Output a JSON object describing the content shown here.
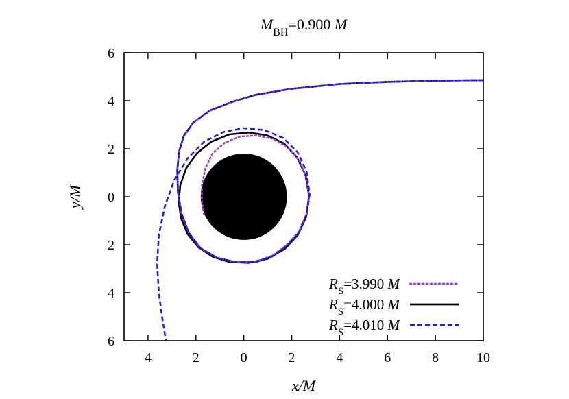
{
  "chart_data": {
    "type": "line",
    "title": {
      "symbol": "M",
      "subscript": "BH",
      "value": "=0.900 ",
      "unit": "M"
    },
    "xlabel": "x/M",
    "ylabel": "y/M",
    "xlim": [
      -5,
      10
    ],
    "ylim": [
      -6,
      6
    ],
    "x_ticks": [
      -4,
      -2,
      0,
      2,
      4,
      6,
      8,
      10
    ],
    "x_tick_labels": [
      "4",
      "2",
      "0",
      "2",
      "4",
      "6",
      "8",
      "10"
    ],
    "y_ticks": [
      -6,
      -4,
      -2,
      0,
      2,
      4,
      6
    ],
    "y_tick_labels": [
      "6",
      "4",
      "2",
      "0",
      "2",
      "4",
      "6"
    ],
    "grid": false,
    "legend_position": "bottom-right",
    "black_hole": {
      "center": [
        0,
        0
      ],
      "radius": 1.8,
      "color": "#000000"
    },
    "series": [
      {
        "name": {
          "symbol": "R",
          "subscript": "S",
          "value": "=3.990 ",
          "unit": "M"
        },
        "color": "#9b3fd6",
        "style": "dotted",
        "points": [
          [
            10,
            4.86
          ],
          [
            8,
            4.84
          ],
          [
            6,
            4.79
          ],
          [
            4,
            4.7
          ],
          [
            2,
            4.5
          ],
          [
            0.5,
            4.25
          ],
          [
            -0.5,
            3.95
          ],
          [
            -1.4,
            3.6
          ],
          [
            -2.1,
            3.1
          ],
          [
            -2.5,
            2.55
          ],
          [
            -2.7,
            1.9
          ],
          [
            -2.78,
            1.1
          ],
          [
            -2.75,
            0.2
          ],
          [
            -2.6,
            -0.7
          ],
          [
            -2.3,
            -1.5
          ],
          [
            -1.8,
            -2.15
          ],
          [
            -1.1,
            -2.55
          ],
          [
            -0.3,
            -2.73
          ],
          [
            0.5,
            -2.7
          ],
          [
            1.2,
            -2.45
          ],
          [
            1.8,
            -2.0
          ],
          [
            2.3,
            -1.45
          ],
          [
            2.62,
            -0.7
          ],
          [
            2.72,
            0.0
          ],
          [
            2.62,
            0.8
          ],
          [
            2.32,
            1.5
          ],
          [
            1.85,
            2.05
          ],
          [
            1.2,
            2.42
          ],
          [
            0.5,
            2.56
          ],
          [
            -0.2,
            2.5
          ],
          [
            -0.8,
            2.25
          ],
          [
            -1.3,
            1.82
          ],
          [
            -1.6,
            1.2
          ],
          [
            -1.75,
            0.5
          ],
          [
            -1.75,
            -0.2
          ],
          [
            -1.65,
            -0.8
          ]
        ]
      },
      {
        "name": {
          "symbol": "R",
          "subscript": "S",
          "value": "=4.000 ",
          "unit": "M"
        },
        "color": "#000000",
        "style": "solid",
        "points": [
          [
            10,
            4.86
          ],
          [
            8,
            4.84
          ],
          [
            6,
            4.79
          ],
          [
            4,
            4.7
          ],
          [
            2,
            4.5
          ],
          [
            0.5,
            4.25
          ],
          [
            -0.5,
            3.95
          ],
          [
            -1.4,
            3.6
          ],
          [
            -2.1,
            3.1
          ],
          [
            -2.5,
            2.55
          ],
          [
            -2.7,
            1.9
          ],
          [
            -2.78,
            1.1
          ],
          [
            -2.75,
            0.2
          ],
          [
            -2.6,
            -0.7
          ],
          [
            -2.3,
            -1.5
          ],
          [
            -1.8,
            -2.15
          ],
          [
            -1.1,
            -2.55
          ],
          [
            -0.3,
            -2.73
          ],
          [
            0.5,
            -2.72
          ],
          [
            1.2,
            -2.48
          ],
          [
            1.8,
            -2.05
          ],
          [
            2.3,
            -1.5
          ],
          [
            2.62,
            -0.75
          ],
          [
            2.72,
            0.05
          ],
          [
            2.58,
            0.9
          ],
          [
            2.22,
            1.65
          ],
          [
            1.68,
            2.22
          ],
          [
            0.98,
            2.56
          ],
          [
            0.2,
            2.68
          ],
          [
            -0.6,
            2.6
          ],
          [
            -1.35,
            2.3
          ],
          [
            -1.95,
            1.82
          ],
          [
            -2.4,
            1.2
          ],
          [
            -2.65,
            0.5
          ],
          [
            -2.72,
            -0.2
          ],
          [
            -2.62,
            -0.9
          ],
          [
            -2.35,
            -1.55
          ],
          [
            -1.9,
            -2.1
          ],
          [
            -1.3,
            -2.5
          ],
          [
            -0.6,
            -2.72
          ],
          [
            0.2,
            -2.75
          ],
          [
            1.0,
            -2.58
          ],
          [
            1.7,
            -2.18
          ],
          [
            2.25,
            -1.6
          ],
          [
            2.6,
            -0.85
          ],
          [
            2.72,
            0.0
          ]
        ]
      },
      {
        "name": {
          "symbol": "R",
          "subscript": "S",
          "value": "=4.010 ",
          "unit": "M"
        },
        "color": "#1f1fe0",
        "style": "dashed",
        "points": [
          [
            10,
            4.86
          ],
          [
            8,
            4.84
          ],
          [
            6,
            4.79
          ],
          [
            4,
            4.7
          ],
          [
            2,
            4.5
          ],
          [
            0.5,
            4.25
          ],
          [
            -0.5,
            3.95
          ],
          [
            -1.4,
            3.6
          ],
          [
            -2.1,
            3.1
          ],
          [
            -2.5,
            2.55
          ],
          [
            -2.7,
            1.9
          ],
          [
            -2.78,
            1.1
          ],
          [
            -2.75,
            0.2
          ],
          [
            -2.6,
            -0.7
          ],
          [
            -2.3,
            -1.5
          ],
          [
            -1.8,
            -2.15
          ],
          [
            -1.1,
            -2.55
          ],
          [
            -0.3,
            -2.73
          ],
          [
            0.5,
            -2.72
          ],
          [
            1.2,
            -2.48
          ],
          [
            1.8,
            -2.05
          ],
          [
            2.3,
            -1.5
          ],
          [
            2.62,
            -0.75
          ],
          [
            2.75,
            0.1
          ],
          [
            2.62,
            1.05
          ],
          [
            2.25,
            1.85
          ],
          [
            1.65,
            2.45
          ],
          [
            0.85,
            2.78
          ],
          [
            0.0,
            2.86
          ],
          [
            -0.85,
            2.7
          ],
          [
            -1.65,
            2.3
          ],
          [
            -2.35,
            1.6
          ],
          [
            -2.9,
            0.7
          ],
          [
            -3.3,
            -0.4
          ],
          [
            -3.55,
            -1.6
          ],
          [
            -3.62,
            -2.8
          ],
          [
            -3.55,
            -4.0
          ],
          [
            -3.4,
            -5.1
          ],
          [
            -3.25,
            -6.0
          ]
        ]
      }
    ]
  }
}
